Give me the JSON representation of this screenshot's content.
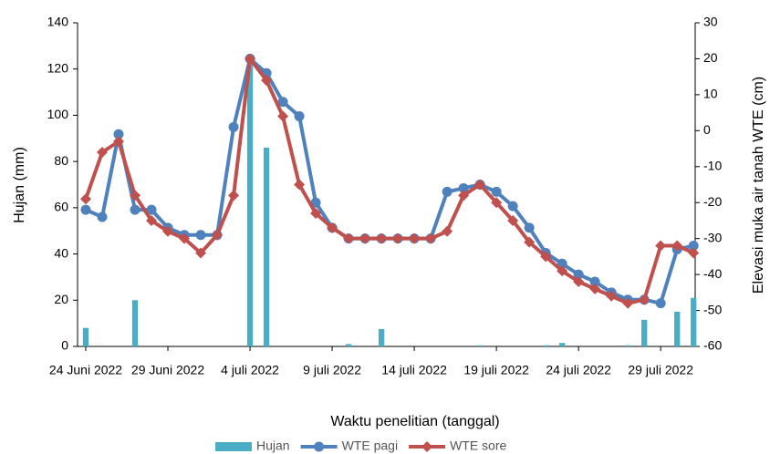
{
  "chart_data": {
    "type": "combo",
    "xlabel": "Waktu penelitian (tanggal)",
    "ylabel": "Hujan (mm)",
    "y2label": "Elevasi muka air tanah WTE (cm)",
    "x": [
      0,
      1,
      2,
      3,
      4,
      5,
      6,
      7,
      8,
      9,
      10,
      11,
      12,
      13,
      14,
      15,
      16,
      17,
      18,
      19,
      20,
      21,
      22,
      23,
      24,
      25,
      26,
      27,
      28,
      29,
      30,
      31,
      32,
      33,
      34,
      35,
      36,
      37
    ],
    "xlim": [
      -0.5,
      37.1
    ],
    "xticks": [
      {
        "value": 0,
        "label": "24 Juni 2022"
      },
      {
        "value": 5,
        "label": "29 Juni 2022"
      },
      {
        "value": 10,
        "label": "4 juli 2022"
      },
      {
        "value": 15,
        "label": "9 juli 2022"
      },
      {
        "value": 20,
        "label": "14 juli 2022"
      },
      {
        "value": 25,
        "label": "19 juli 2022"
      },
      {
        "value": 30,
        "label": "24 juli 2022"
      },
      {
        "value": 35,
        "label": "29 juli 2022"
      }
    ],
    "ylim": [
      0,
      140
    ],
    "yticks": [
      0,
      20,
      40,
      60,
      80,
      100,
      120,
      140
    ],
    "y2lim": [
      -60,
      30
    ],
    "y2ticks": [
      -60,
      -50,
      -40,
      -30,
      -20,
      -10,
      0,
      10,
      20,
      30
    ],
    "series": [
      {
        "name": "Hujan",
        "type": "bar",
        "color": "#4bacc6",
        "values": [
          8,
          0,
          0,
          20,
          0,
          0,
          0,
          0,
          0,
          0,
          124,
          86,
          0,
          0,
          0,
          0,
          1,
          0,
          7.5,
          0,
          0,
          0,
          0,
          0,
          0.5,
          0,
          0,
          0,
          0.5,
          1.5,
          0,
          0,
          0,
          0.5,
          11.5,
          0,
          15,
          21
        ]
      },
      {
        "name": "WTE pagi",
        "type": "line",
        "marker": "circle",
        "axis": "y2",
        "color": "#4f81bd",
        "values": [
          -22,
          -24,
          -1,
          -22,
          -22,
          -27,
          -29,
          -29,
          -29,
          1,
          20,
          16,
          8,
          4,
          -20,
          -27,
          -30,
          -30,
          -30,
          -30,
          -30,
          -30,
          -17,
          -16,
          -15,
          -17,
          -21,
          -27,
          -34,
          -37,
          -40,
          -42,
          -45,
          -47,
          -47,
          -48,
          -33,
          -32
        ]
      },
      {
        "name": "WTE sore",
        "type": "line",
        "marker": "diamond",
        "axis": "y2",
        "color": "#c0504d",
        "values": [
          -19,
          -6,
          -3,
          -18,
          -25,
          -28,
          -30,
          -34,
          -29,
          -18,
          20,
          14,
          4,
          -15,
          -23,
          -27,
          -30,
          -30,
          -30,
          -30,
          -30,
          -30,
          -28,
          -18,
          -15,
          -20,
          -25,
          -31,
          -35,
          -39,
          -42,
          -44,
          -46,
          -48,
          -47,
          -32,
          -32,
          -34
        ]
      }
    ]
  }
}
